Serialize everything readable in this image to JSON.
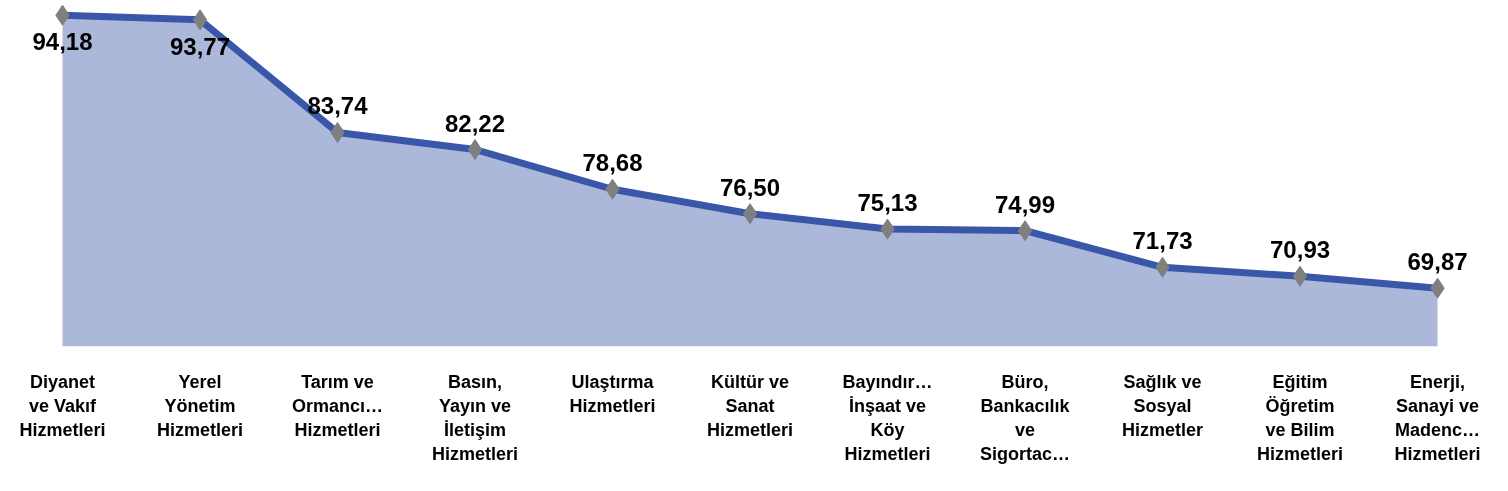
{
  "chart_data": {
    "type": "area",
    "categories": [
      "Diyanet ve Vakıf Hizmetleri",
      "Yerel Yönetim Hizmetleri",
      "Tarım ve Ormancı… Hizmetleri",
      "Basın, Yayın ve İletişim Hizmetleri",
      "Ulaştırma Hizmetleri",
      "Kültür ve Sanat Hizmetleri",
      "Bayındır… İnşaat ve Köy Hizmetleri",
      "Büro, Bankacılık ve Sigortac…",
      "Sağlık ve Sosyal Hizmetler",
      "Eğitim Öğretim ve Bilim Hizmetleri",
      "Enerji, Sanayi ve Madenc… Hizmetleri"
    ],
    "series": [
      {
        "color": "#3a56a8",
        "values": [
          94.18,
          93.77,
          83.74,
          82.22,
          78.68,
          76.5,
          75.13,
          74.99,
          71.73,
          70.93,
          69.87
        ],
        "value_labels": [
          "94,18",
          "93,77",
          "83,74",
          "82,22",
          "78,68",
          "76,50",
          "75,13",
          "74,99",
          "71,73",
          "70,93",
          "69,87"
        ]
      }
    ],
    "marker": "diamond",
    "tick_labels": "x"
  }
}
